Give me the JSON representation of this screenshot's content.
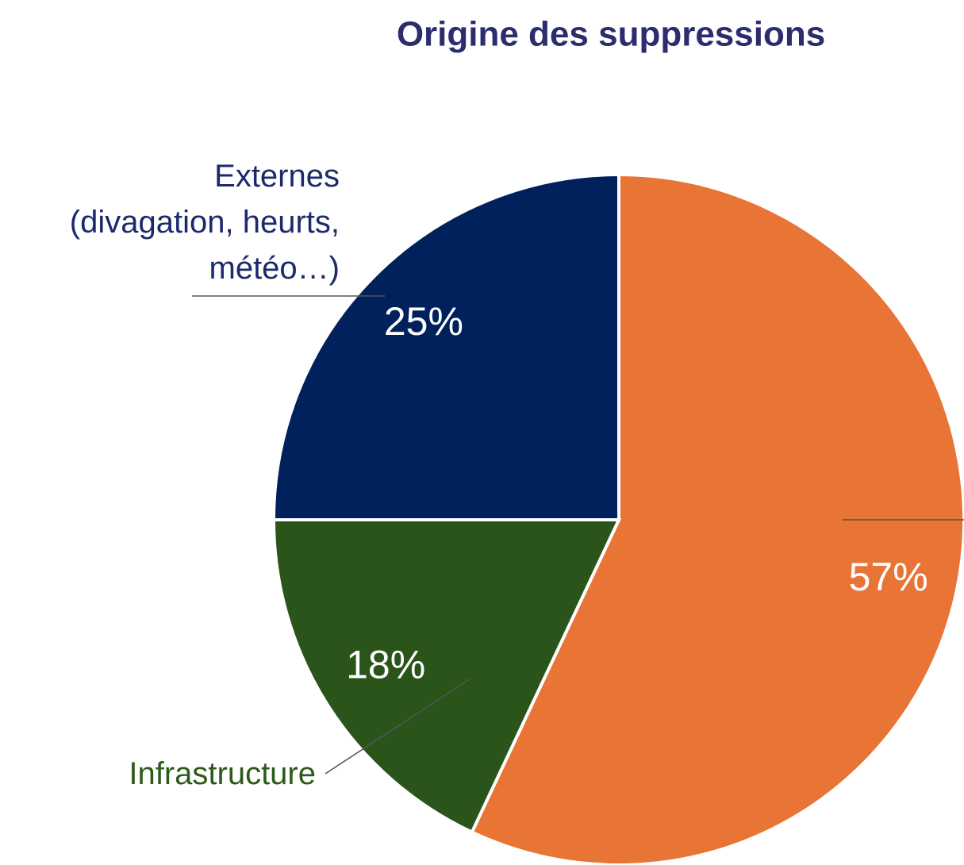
{
  "chart_data": {
    "type": "pie",
    "title": "Origine des suppressions",
    "categories": [
      null,
      "Infrastructure",
      "Externes\n(divagation, heurts,\nmétéo…)"
    ],
    "values": [
      57,
      18,
      25
    ],
    "value_labels": [
      "57%",
      "18%",
      "25%"
    ],
    "colors": [
      "#e87435",
      "#2a5419",
      "#00215c"
    ],
    "label_colors": [
      "#e87435",
      "#2d5a1b",
      "#1b2a6b"
    ]
  }
}
